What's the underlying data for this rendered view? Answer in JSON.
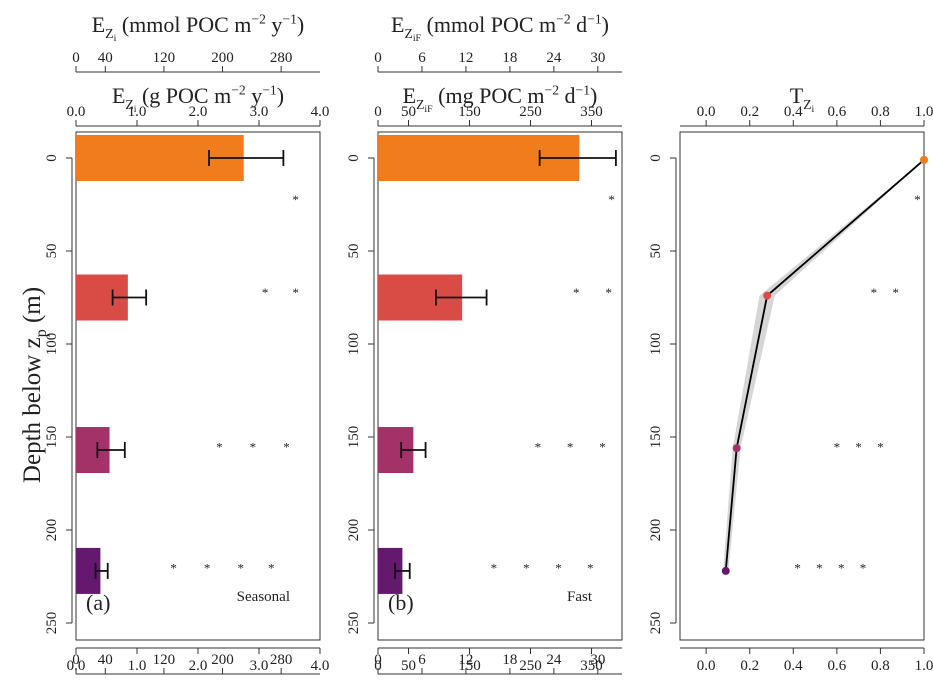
{
  "figure": {
    "ylabel_main": "Depth below z",
    "ylabel_sub": "p",
    "ylabel_unit": " (m)"
  },
  "chart_data": [
    {
      "type": "bar",
      "orientation": "horizontal",
      "panel_label": "(a)",
      "corner_label": "Seasonal",
      "top_axis": {
        "label_prefix": "E",
        "label_sub": "Z",
        "label_subsub": "i",
        "label_unit": " (g POC m",
        "label_exp": "−2",
        "label_unit2": " y",
        "label_exp2": "−1",
        "label_close": ")",
        "range": [
          0,
          4
        ],
        "ticks": [
          "0.0",
          "1.0",
          "2.0",
          "3.0",
          "4.0"
        ]
      },
      "secondary_axis": {
        "label_prefix": "E",
        "label_sub": "Z",
        "label_subsub": "i",
        "label_unit": " (mmol POC m",
        "label_exp": "−2",
        "label_unit2": " y",
        "label_exp2": "−1",
        "label_close": ")",
        "range": [
          0,
          333
        ],
        "ticks": [
          {
            "label": "0",
            "value": 0
          },
          {
            "label": "40",
            "value": 40
          },
          {
            "label": "120",
            "value": 120
          },
          {
            "label": "200",
            "value": 200
          },
          {
            "label": "280",
            "value": 280
          }
        ]
      },
      "ylim": [
        0,
        250
      ],
      "y_ticks": [
        "0",
        "50",
        "100",
        "150",
        "200",
        "250"
      ],
      "bars": [
        {
          "depth": 0,
          "value": 2.75,
          "err_low": 2.18,
          "err_high": 3.4,
          "color": "#f07c1c"
        },
        {
          "depth": 75,
          "value": 0.85,
          "err_low": 0.6,
          "err_high": 1.15,
          "color": "#d94b45"
        },
        {
          "depth": 157,
          "value": 0.55,
          "err_low": 0.35,
          "err_high": 0.8,
          "color": "#a23268"
        },
        {
          "depth": 222,
          "value": 0.4,
          "err_low": 0.32,
          "err_high": 0.52,
          "color": "#64196f"
        }
      ],
      "significance": [
        {
          "depth": 20,
          "x": [
            3.6
          ],
          "mark": "*"
        },
        {
          "depth": 70,
          "x": [
            3.1,
            3.6
          ],
          "mark": "*"
        },
        {
          "depth": 153,
          "x": [
            2.35,
            2.9,
            3.45
          ],
          "mark": "*"
        },
        {
          "depth": 218,
          "x": [
            1.6,
            2.15,
            2.7,
            3.2
          ],
          "mark": "*"
        }
      ]
    },
    {
      "type": "bar",
      "orientation": "horizontal",
      "panel_label": "(b)",
      "corner_label": "Fast",
      "top_axis": {
        "label_prefix": "E",
        "label_sub": "Z",
        "label_subsub": "iF",
        "label_unit": " (mg POC m",
        "label_exp": "−2",
        "label_unit2": " d",
        "label_exp2": "−1",
        "label_close": ")",
        "range": [
          0,
          400
        ],
        "ticks": [
          {
            "label": "0",
            "value": 0
          },
          {
            "label": "50",
            "value": 50
          },
          {
            "label": "150",
            "value": 150
          },
          {
            "label": "250",
            "value": 250
          },
          {
            "label": "350",
            "value": 350
          }
        ]
      },
      "secondary_axis": {
        "label_prefix": "E",
        "label_sub": "Z",
        "label_subsub": "iF",
        "label_unit": " (mmol POC m",
        "label_exp": "−2",
        "label_unit2": " d",
        "label_exp2": "−1",
        "label_close": ")",
        "range": [
          0,
          33.3
        ],
        "ticks": [
          {
            "label": "0",
            "value": 0
          },
          {
            "label": "6",
            "value": 6
          },
          {
            "label": "12",
            "value": 12
          },
          {
            "label": "18",
            "value": 18
          },
          {
            "label": "24",
            "value": 24
          },
          {
            "label": "30",
            "value": 30
          }
        ]
      },
      "ylim": [
        0,
        250
      ],
      "y_ticks": [
        "0",
        "50",
        "100",
        "150",
        "200",
        "250"
      ],
      "bars": [
        {
          "depth": 0,
          "value": 330,
          "err_low": 265,
          "err_high": 390,
          "color": "#f07c1c"
        },
        {
          "depth": 75,
          "value": 138,
          "err_low": 95,
          "err_high": 178,
          "color": "#d94b45"
        },
        {
          "depth": 157,
          "value": 58,
          "err_low": 38,
          "err_high": 78,
          "color": "#a23268"
        },
        {
          "depth": 222,
          "value": 40,
          "err_low": 28,
          "err_high": 52,
          "color": "#64196f"
        }
      ],
      "significance": [
        {
          "depth": 20,
          "x": [
            383
          ],
          "mark": "*"
        },
        {
          "depth": 70,
          "x": [
            325,
            378
          ],
          "mark": "*"
        },
        {
          "depth": 153,
          "x": [
            262,
            315,
            368
          ],
          "mark": "*"
        },
        {
          "depth": 218,
          "x": [
            190,
            243,
            296,
            348
          ],
          "mark": "*"
        }
      ]
    },
    {
      "type": "line",
      "top_axis": {
        "label_prefix": "T",
        "label_sub": "Z",
        "label_subsub": "i",
        "range": [
          -0.12,
          1.0
        ],
        "ticks": [
          "0.0",
          "0.2",
          "0.4",
          "0.6",
          "0.8",
          "1.0"
        ]
      },
      "ylim": [
        0,
        250
      ],
      "y_ticks": [
        "0",
        "50",
        "100",
        "150",
        "200",
        "250"
      ],
      "x_ticks_bottom": [
        "0.0",
        "0.2",
        "0.4",
        "0.6",
        "0.8",
        "1.0"
      ],
      "points": [
        {
          "depth": 1,
          "value": 1.0,
          "color": "#f07c1c"
        },
        {
          "depth": 74,
          "value": 0.28,
          "color": "#d94b45"
        },
        {
          "depth": 156,
          "value": 0.14,
          "color": "#a23268"
        },
        {
          "depth": 222,
          "value": 0.09,
          "color": "#64196f"
        }
      ],
      "band_halfwidth": [
        0.0,
        0.035,
        0.018,
        0.012
      ],
      "band_color": "#d6d6d6",
      "line_color": "#000000",
      "significance": [
        {
          "depth": 20,
          "x": [
            0.97
          ],
          "mark": "*"
        },
        {
          "depth": 70,
          "x": [
            0.77,
            0.87
          ],
          "mark": "*"
        },
        {
          "depth": 153,
          "x": [
            0.6,
            0.7,
            0.8
          ],
          "mark": "*"
        },
        {
          "depth": 218,
          "x": [
            0.42,
            0.52,
            0.62,
            0.72
          ],
          "mark": "*"
        }
      ]
    }
  ]
}
